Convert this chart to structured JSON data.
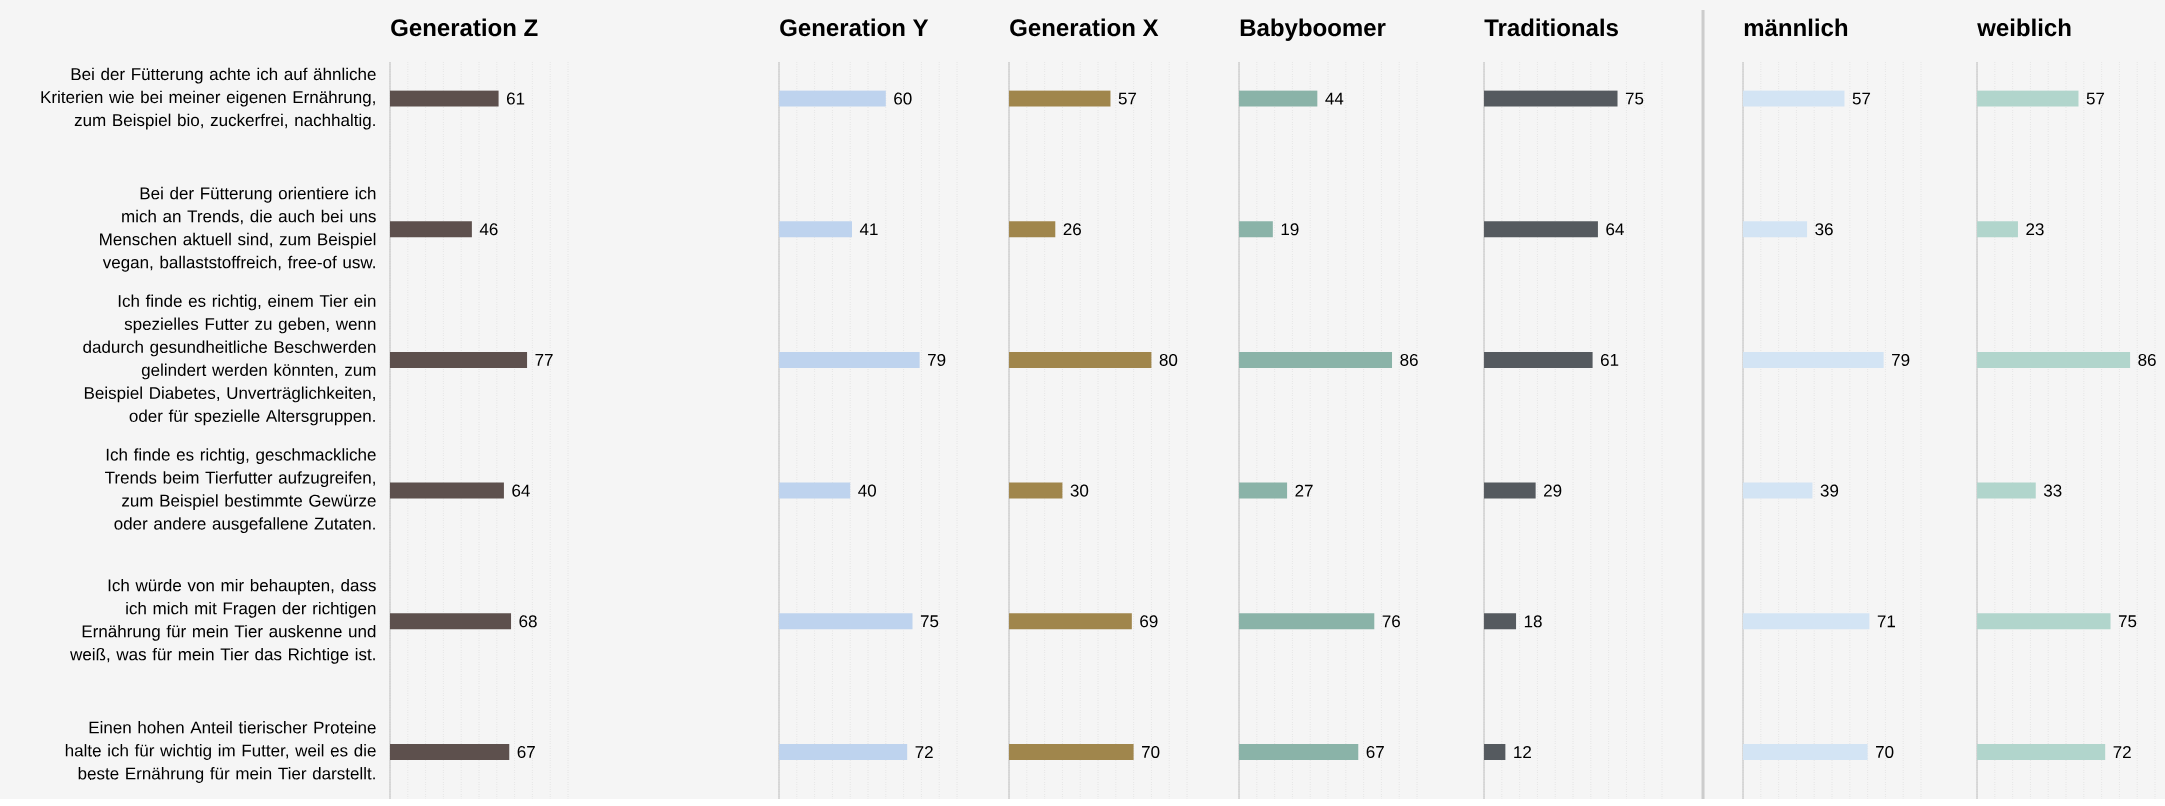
{
  "chart_data": [
    {
      "type": "bar",
      "orientation": "horizontal",
      "title": "Generation Z",
      "categories": [
        "Bei der Fütterung achte ich auf ähnliche Kriterien wie bei meiner eigenen Ernährung, zum Beispiel bio, zuckerfrei, nachhaltig.",
        "Bei der Fütterung orientiere ich mich an Trends, die auch bei uns Menschen aktuell sind, zum Beispiel vegan, ballaststoffreich, free-of usw.",
        "Ich finde es richtig, einem Tier ein spezielles Futter zu geben, wenn dadurch gesundheitliche Beschwerden gelindert werden könnten, zum Beispiel Diabetes, Unverträglichkeiten, oder für spezielle Altersgruppen.",
        "Ich finde es richtig, geschmackliche Trends beim Tierfutter aufzugreifen, zum Beispiel bestimmte Gewürze oder andere ausgefallene Zutaten.",
        "Ich würde von mir behaupten, dass ich mich mit Fragen der richtigen Ernährung für mein Tier auskenne und weiß, was für mein Tier das Richtige ist.",
        "Einen hohen Anteil tierischer Proteine halte ich für wichtig im Futter, weil es die beste Ernährung für mein Tier darstellt."
      ],
      "values": [
        61,
        46,
        77,
        64,
        68,
        67
      ],
      "color": "#5d504d",
      "xlim": [
        0,
        100
      ],
      "xticks": [
        {
          "value": 0,
          "label": null
        },
        {
          "value": 10,
          "label": null
        },
        {
          "value": 20,
          "label": null
        },
        {
          "value": 30,
          "label": null
        },
        {
          "value": 40,
          "label": null
        },
        {
          "value": 50,
          "label": null
        },
        {
          "value": 60,
          "label": null
        },
        {
          "value": 70,
          "label": null
        },
        {
          "value": 80,
          "label": null
        },
        {
          "value": 90,
          "label": null
        },
        {
          "value": 100,
          "label": null
        }
      ],
      "grid": "x",
      "data_labels": true,
      "tick_labels": "y"
    },
    {
      "type": "bar",
      "orientation": "horizontal",
      "title": "Generation Y",
      "values": [
        60,
        41,
        79,
        40,
        75,
        72
      ],
      "color": "#bed3ee",
      "xlim": [
        0,
        100
      ],
      "xticks": [
        {
          "value": 0,
          "label": null
        },
        {
          "value": 10,
          "label": null
        },
        {
          "value": 20,
          "label": null
        },
        {
          "value": 30,
          "label": null
        },
        {
          "value": 40,
          "label": null
        },
        {
          "value": 50,
          "label": null
        },
        {
          "value": 60,
          "label": null
        },
        {
          "value": 70,
          "label": null
        },
        {
          "value": 80,
          "label": null
        },
        {
          "value": 90,
          "label": null
        },
        {
          "value": 100,
          "label": null
        }
      ],
      "grid": "x",
      "data_labels": true,
      "tick_labels": false
    },
    {
      "type": "bar",
      "orientation": "horizontal",
      "title": "Generation X",
      "values": [
        57,
        26,
        80,
        30,
        69,
        70
      ],
      "color": "#a0864c",
      "xlim": [
        0,
        100
      ],
      "xticks": [
        {
          "value": 0,
          "label": null
        },
        {
          "value": 10,
          "label": null
        },
        {
          "value": 20,
          "label": null
        },
        {
          "value": 30,
          "label": null
        },
        {
          "value": 40,
          "label": null
        },
        {
          "value": 50,
          "label": null
        },
        {
          "value": 60,
          "label": null
        },
        {
          "value": 70,
          "label": null
        },
        {
          "value": 80,
          "label": null
        },
        {
          "value": 90,
          "label": null
        },
        {
          "value": 100,
          "label": null
        }
      ],
      "grid": "x",
      "data_labels": true,
      "tick_labels": false
    },
    {
      "type": "bar",
      "orientation": "horizontal",
      "title": "Babyboomer",
      "values": [
        44,
        19,
        86,
        27,
        76,
        67
      ],
      "color": "#8ab3a8",
      "xlim": [
        0,
        100
      ],
      "xticks": [
        {
          "value": 0,
          "label": null
        },
        {
          "value": 10,
          "label": null
        },
        {
          "value": 20,
          "label": null
        },
        {
          "value": 30,
          "label": null
        },
        {
          "value": 40,
          "label": null
        },
        {
          "value": 50,
          "label": null
        },
        {
          "value": 60,
          "label": null
        },
        {
          "value": 70,
          "label": null
        },
        {
          "value": 80,
          "label": null
        },
        {
          "value": 90,
          "label": null
        },
        {
          "value": 100,
          "label": null
        }
      ],
      "grid": "x",
      "data_labels": true,
      "tick_labels": false
    },
    {
      "type": "bar",
      "orientation": "horizontal",
      "title": "Traditionals",
      "values": [
        75,
        64,
        61,
        29,
        18,
        12
      ],
      "color": "#555a5f",
      "xlim": [
        0,
        100
      ],
      "xticks": [
        {
          "value": 0,
          "label": null
        },
        {
          "value": 10,
          "label": null
        },
        {
          "value": 20,
          "label": null
        },
        {
          "value": 30,
          "label": null
        },
        {
          "value": 40,
          "label": null
        },
        {
          "value": 50,
          "label": null
        },
        {
          "value": 60,
          "label": null
        },
        {
          "value": 70,
          "label": null
        },
        {
          "value": 80,
          "label": null
        },
        {
          "value": 90,
          "label": null
        },
        {
          "value": 100,
          "label": null
        }
      ],
      "grid": "x",
      "data_labels": true,
      "tick_labels": false
    },
    {
      "type": "bar",
      "orientation": "horizontal",
      "title": "männlich",
      "values": [
        57,
        36,
        79,
        39,
        71,
        70
      ],
      "color": "#d3e4f4",
      "xlim": [
        0,
        100
      ],
      "xticks": [
        {
          "value": 0,
          "label": null
        },
        {
          "value": 10,
          "label": null
        },
        {
          "value": 20,
          "label": null
        },
        {
          "value": 30,
          "label": null
        },
        {
          "value": 40,
          "label": null
        },
        {
          "value": 50,
          "label": null
        },
        {
          "value": 60,
          "label": null
        },
        {
          "value": 70,
          "label": null
        },
        {
          "value": 80,
          "label": null
        },
        {
          "value": 90,
          "label": null
        },
        {
          "value": 100,
          "label": null
        }
      ],
      "grid": "x",
      "data_labels": true,
      "tick_labels": false
    },
    {
      "type": "bar",
      "orientation": "horizontal",
      "title": "weiblich",
      "values": [
        57,
        23,
        86,
        33,
        75,
        72
      ],
      "color": "#b1d5cc",
      "xlim": [
        0,
        100
      ],
      "xticks": [
        {
          "value": 0,
          "label": null
        },
        {
          "value": 10,
          "label": null
        },
        {
          "value": 20,
          "label": null
        },
        {
          "value": 30,
          "label": null
        },
        {
          "value": 40,
          "label": null
        },
        {
          "value": 50,
          "label": null
        },
        {
          "value": 60,
          "label": null
        },
        {
          "value": 70,
          "label": null
        },
        {
          "value": 80,
          "label": null
        },
        {
          "value": 90,
          "label": null
        },
        {
          "value": 100,
          "label": null
        }
      ],
      "grid": "x",
      "data_labels": true,
      "tick_labels": false
    }
  ]
}
